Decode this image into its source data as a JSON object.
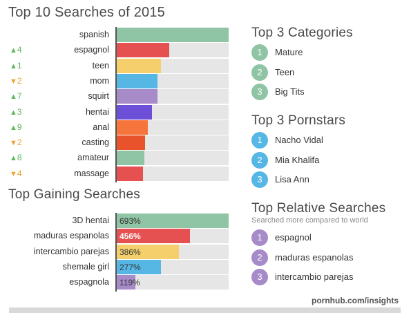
{
  "top10": {
    "title": "Top 10 Searches of 2015",
    "rows": [
      {
        "label": "spanish",
        "delta": "",
        "dir": "",
        "value": 100,
        "color": "#8fc4a4"
      },
      {
        "label": "espagnol",
        "delta": "4",
        "dir": "up",
        "value": 47,
        "color": "#e55050"
      },
      {
        "label": "teen",
        "delta": "1",
        "dir": "up",
        "value": 40,
        "color": "#f4cf6b"
      },
      {
        "label": "mom",
        "delta": "2",
        "dir": "down",
        "value": 37,
        "color": "#56b7e4"
      },
      {
        "label": "squirt",
        "delta": "7",
        "dir": "up",
        "value": 37,
        "color": "#a78ac8"
      },
      {
        "label": "hentai",
        "delta": "3",
        "dir": "up",
        "value": 32,
        "color": "#6e4fd8"
      },
      {
        "label": "anal",
        "delta": "9",
        "dir": "up",
        "value": 28,
        "color": "#f6753d"
      },
      {
        "label": "casting",
        "delta": "2",
        "dir": "down",
        "value": 26,
        "color": "#e8532b"
      },
      {
        "label": "amateur",
        "delta": "8",
        "dir": "up",
        "value": 25,
        "color": "#8fc4a4"
      },
      {
        "label": "massage",
        "delta": "4",
        "dir": "down",
        "value": 24,
        "color": "#e55050"
      }
    ]
  },
  "gaining": {
    "title": "Top Gaining Searches",
    "rows": [
      {
        "label": "3D hentai",
        "value": 693,
        "pct": "693%",
        "color": "#8fc4a4"
      },
      {
        "label": "maduras espanolas",
        "value": 456,
        "pct": "456%",
        "color": "#e55050"
      },
      {
        "label": "intercambio parejas",
        "value": 386,
        "pct": "386%",
        "color": "#f4cf6b"
      },
      {
        "label": "shemale girl",
        "value": 277,
        "pct": "277%",
        "color": "#56b7e4"
      },
      {
        "label": "espagnola",
        "value": 119,
        "pct": "119%",
        "color": "#a78ac8"
      }
    ]
  },
  "categories": {
    "title": "Top 3 Categories",
    "color": "#8fc4a4",
    "items": [
      {
        "n": "1",
        "text": "Mature"
      },
      {
        "n": "2",
        "text": "Teen"
      },
      {
        "n": "3",
        "text": "Big Tits"
      }
    ]
  },
  "pornstars": {
    "title": "Top 3 Pornstars",
    "color": "#56b7e4",
    "items": [
      {
        "n": "1",
        "text": "Nacho Vidal"
      },
      {
        "n": "2",
        "text": "Mia Khalifa"
      },
      {
        "n": "3",
        "text": "Lisa Ann"
      }
    ]
  },
  "relative": {
    "title": "Top Relative Searches",
    "subtitle": "Searched more compared to world",
    "color": "#a78ac8",
    "items": [
      {
        "n": "1",
        "text": "espagnol"
      },
      {
        "n": "2",
        "text": "maduras espanolas"
      },
      {
        "n": "3",
        "text": "intercambio parejas"
      }
    ]
  },
  "footer": "pornhub.com/insights",
  "colors": {
    "up": "#5cb85c",
    "down": "#f0a030"
  },
  "chart_data": [
    {
      "type": "bar",
      "title": "Top 10 Searches of 2015",
      "categories": [
        "spanish",
        "espagnol",
        "teen",
        "mom",
        "squirt",
        "hentai",
        "anal",
        "casting",
        "amateur",
        "massage"
      ],
      "values": [
        100,
        47,
        40,
        37,
        37,
        32,
        28,
        26,
        25,
        24
      ],
      "rank_change": [
        "",
        "+4",
        "+1",
        "-2",
        "+7",
        "+3",
        "+9",
        "-2",
        "+8",
        "-4"
      ],
      "xlim": [
        0,
        100
      ]
    },
    {
      "type": "bar",
      "title": "Top Gaining Searches",
      "categories": [
        "3D hentai",
        "maduras espanolas",
        "intercambio parejas",
        "shemale girl",
        "espagnola"
      ],
      "values": [
        693,
        456,
        386,
        277,
        119
      ],
      "xlim": [
        0,
        693
      ]
    }
  ]
}
